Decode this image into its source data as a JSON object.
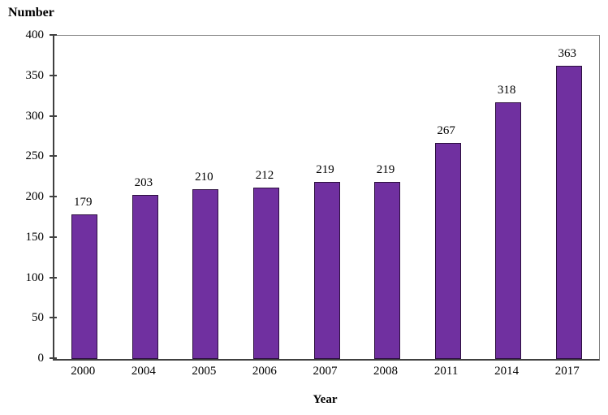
{
  "chart_data": {
    "type": "bar",
    "categories": [
      "2000",
      "2004",
      "2005",
      "2006",
      "2007",
      "2008",
      "2011",
      "2014",
      "2017"
    ],
    "values": [
      179,
      203,
      210,
      212,
      219,
      219,
      267,
      318,
      363
    ],
    "title": "",
    "xlabel": "Year",
    "ylabel": "Number",
    "ylim": [
      0,
      400
    ],
    "ytick_step": 50,
    "ytick_labels": [
      "0",
      "50",
      "100",
      "150",
      "200",
      "250",
      "300",
      "350",
      "400"
    ],
    "data_labels": [
      "179",
      "203",
      "210",
      "212",
      "219",
      "219",
      "267",
      "318",
      "363"
    ],
    "grid": false,
    "legend": "none",
    "bar_color": "#7030A0",
    "bar_border_color": "#2D1040",
    "axis_color": "#404040",
    "frame_color": "#808080"
  }
}
